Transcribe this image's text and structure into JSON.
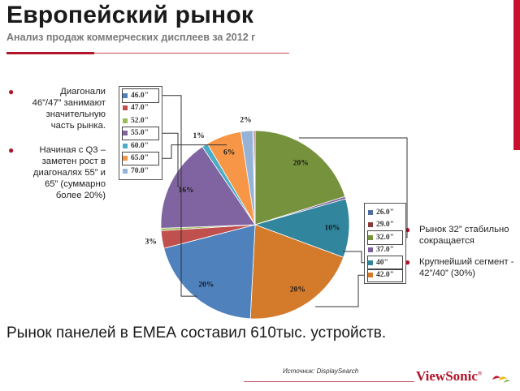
{
  "header": {
    "title": "Европейский рынок",
    "subtitle": "Анализ продаж  коммерческих  дисплеев за 2012 г"
  },
  "bullets_left": [
    {
      "text": "Диагонали 46”/47” занимают значительную часть рынка."
    },
    {
      "text": "Начиная с Q3 – заметен рост в диагоналях 55” и 65” (суммарно более 20%)"
    }
  ],
  "bullets_right": [
    {
      "text": "Рынок 32” стабильно сокращается"
    },
    {
      "text": "Крупнейший сегмент - 42”/40”  (30%)"
    }
  ],
  "footer": {
    "statement": "Рынок панелей в ЕМЕА составил 610тыс. устройств.",
    "source": "Источник: DisplaySearch",
    "logo": "ViewSonic",
    "logo_mark": "®"
  },
  "colors": {
    "accent": "#b0152a",
    "rule": "#c94a5a"
  },
  "chart_data": {
    "type": "pie",
    "title": "",
    "categories": [
      "32.0\"",
      "37.0\"",
      "40\"",
      "42.0\"",
      "46.0\"",
      "47.0\"",
      "52.0\"",
      "55.0\"",
      "60.0\"",
      "65.0\"",
      "70.0\"",
      "26.0\"",
      "29.0\""
    ],
    "values": [
      20,
      0.4,
      10,
      20,
      20,
      3,
      0.4,
      16,
      1,
      6,
      2,
      0.2,
      0.2
    ],
    "labels": [
      "20%",
      "",
      "10%",
      "20%",
      "20%",
      "3%",
      "",
      "16%",
      "1%",
      "6%",
      "2%",
      "",
      ""
    ],
    "series_colors": [
      "#76923c",
      "#7e5f9c",
      "#31859c",
      "#d47a2b",
      "#4f81bd",
      "#c0504d",
      "#9bbb59",
      "#8064a2",
      "#4bacc6",
      "#f79646",
      "#95b3d7",
      "#4f6ea0",
      "#8b3a3a"
    ],
    "legend_left": [
      "46.0\"",
      "47.0\"",
      "52.0\"",
      "55.0\"",
      "60.0\"",
      "65.0\"",
      "70.0\""
    ],
    "legend_left_highlighted": [
      "46.0\"",
      "55.0\"",
      "65.0\""
    ],
    "legend_right": [
      "26.0\"",
      "29.0\"",
      "32.0\"",
      "37.0\"",
      "40\"",
      "42.0\""
    ],
    "legend_right_highlighted": [
      "32.0\"",
      "40\"",
      "42.0\""
    ]
  }
}
